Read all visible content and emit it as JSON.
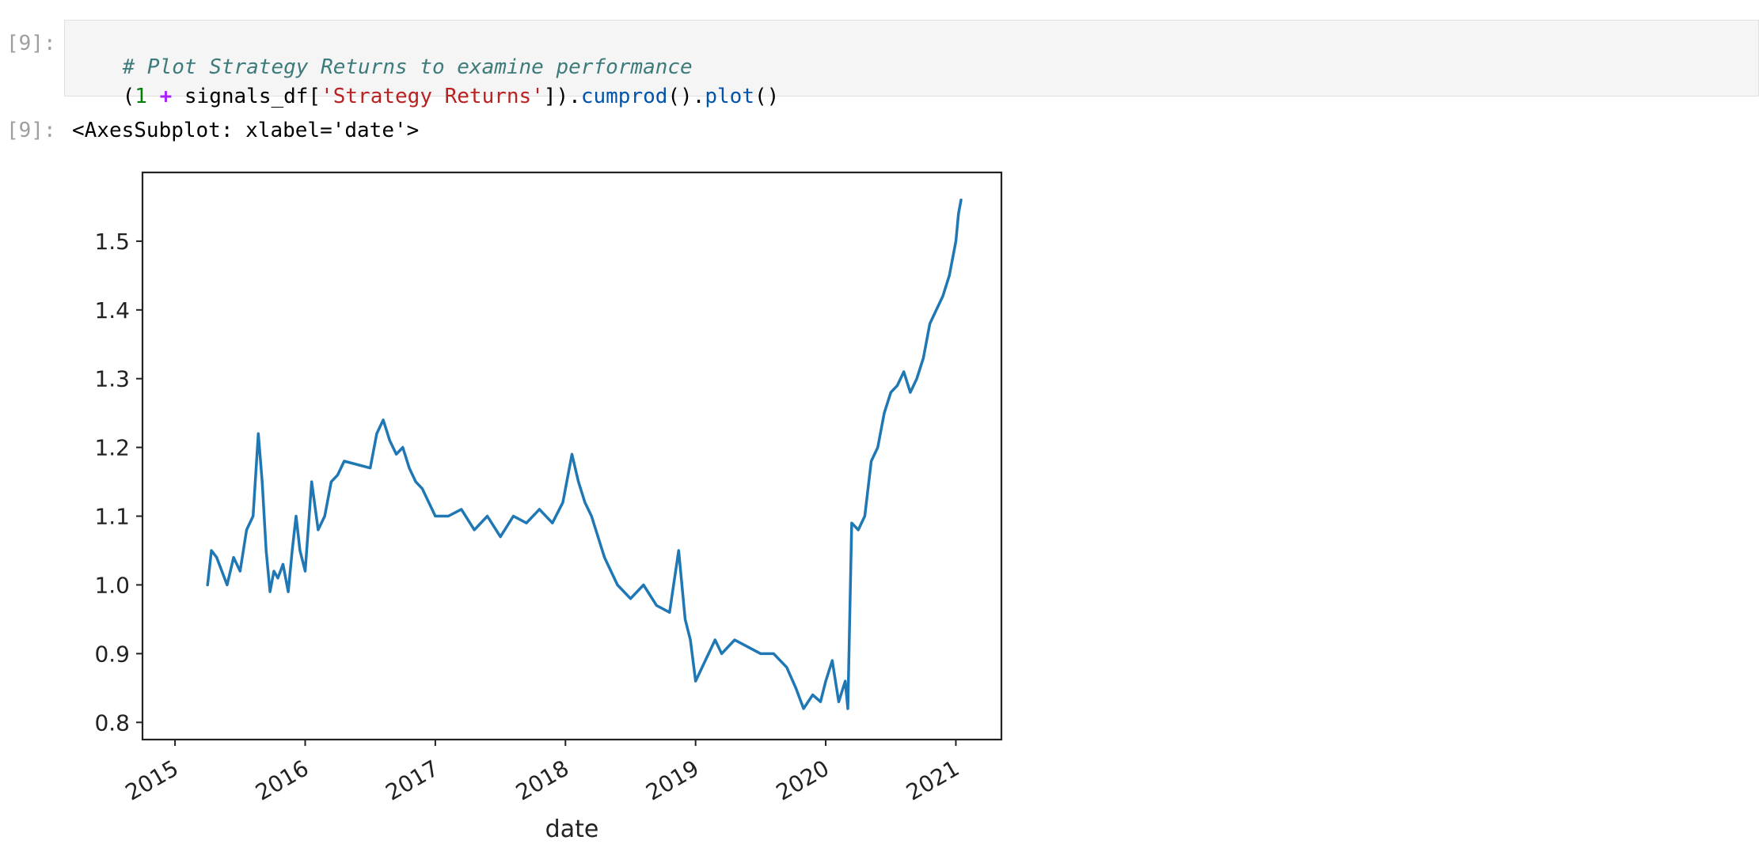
{
  "input_cell": {
    "prompt": "[9]:",
    "line1": {
      "comment": "# Plot Strategy Returns to examine performance"
    },
    "line2": {
      "paren_open": "(",
      "num": "1",
      "space1": " ",
      "op": "+",
      "var": " signals_df[",
      "str": "'Strategy Returns'",
      "close": "]).",
      "fn1": "cumprod",
      "mid": "().",
      "fn2": "plot",
      "end": "()"
    }
  },
  "output_cell": {
    "prompt": "[9]:",
    "text": "<AxesSubplot: xlabel='date'>"
  },
  "chart_data": {
    "type": "line",
    "xlabel": "date",
    "ylabel": "",
    "title": "",
    "line_color": "#1f77b4",
    "xlim": [
      2014.75,
      2021.35
    ],
    "ylim": [
      0.775,
      1.6
    ],
    "x_ticks": [
      2015,
      2016,
      2017,
      2018,
      2019,
      2020,
      2021
    ],
    "x_tick_labels": [
      "2015",
      "2016",
      "2017",
      "2018",
      "2019",
      "2020",
      "2021"
    ],
    "y_ticks": [
      0.8,
      0.9,
      1.0,
      1.1,
      1.2,
      1.3,
      1.4,
      1.5
    ],
    "y_tick_labels": [
      "0.8",
      "0.9",
      "1.0",
      "1.1",
      "1.2",
      "1.3",
      "1.4",
      "1.5"
    ],
    "grid": false,
    "series": [
      {
        "x": [
          2015.25,
          2015.28,
          2015.32,
          2015.36,
          2015.4,
          2015.45,
          2015.5,
          2015.55,
          2015.6,
          2015.64,
          2015.67,
          2015.7,
          2015.73,
          2015.76,
          2015.79,
          2015.83,
          2015.87,
          2015.9,
          2015.93,
          2015.96,
          2016.0,
          2016.05,
          2016.1,
          2016.15,
          2016.2,
          2016.25,
          2016.3,
          2016.5,
          2016.55,
          2016.6,
          2016.65,
          2016.7,
          2016.75,
          2016.8,
          2016.85,
          2016.9,
          2017.0,
          2017.1,
          2017.2,
          2017.3,
          2017.4,
          2017.5,
          2017.6,
          2017.7,
          2017.8,
          2017.9,
          2017.98,
          2018.05,
          2018.1,
          2018.15,
          2018.2,
          2018.3,
          2018.4,
          2018.5,
          2018.6,
          2018.7,
          2018.8,
          2018.87,
          2018.92,
          2018.96,
          2019.0,
          2019.05,
          2019.1,
          2019.15,
          2019.2,
          2019.3,
          2019.4,
          2019.5,
          2019.6,
          2019.7,
          2019.77,
          2019.83,
          2019.9,
          2019.96,
          2020.0,
          2020.05,
          2020.1,
          2020.15,
          2020.17,
          2020.2,
          2020.25,
          2020.3,
          2020.35,
          2020.4,
          2020.45,
          2020.5,
          2020.55,
          2020.6,
          2020.65,
          2020.7,
          2020.75,
          2020.8,
          2020.85,
          2020.9,
          2020.95,
          2021.0,
          2021.02,
          2021.04
        ],
        "y": [
          1.0,
          1.05,
          1.04,
          1.02,
          1.0,
          1.04,
          1.02,
          1.08,
          1.1,
          1.22,
          1.15,
          1.05,
          0.99,
          1.02,
          1.01,
          1.03,
          0.99,
          1.05,
          1.1,
          1.05,
          1.02,
          1.15,
          1.08,
          1.1,
          1.15,
          1.16,
          1.18,
          1.17,
          1.22,
          1.24,
          1.21,
          1.19,
          1.2,
          1.17,
          1.15,
          1.14,
          1.1,
          1.1,
          1.11,
          1.08,
          1.1,
          1.07,
          1.1,
          1.09,
          1.11,
          1.09,
          1.12,
          1.19,
          1.15,
          1.12,
          1.1,
          1.04,
          1.0,
          0.98,
          1.0,
          0.97,
          0.96,
          1.05,
          0.95,
          0.92,
          0.86,
          0.88,
          0.9,
          0.92,
          0.9,
          0.92,
          0.91,
          0.9,
          0.9,
          0.88,
          0.85,
          0.82,
          0.84,
          0.83,
          0.86,
          0.89,
          0.83,
          0.86,
          0.82,
          1.09,
          1.08,
          1.1,
          1.18,
          1.2,
          1.25,
          1.28,
          1.29,
          1.31,
          1.28,
          1.3,
          1.33,
          1.38,
          1.4,
          1.42,
          1.45,
          1.5,
          1.54,
          1.56
        ]
      }
    ]
  }
}
